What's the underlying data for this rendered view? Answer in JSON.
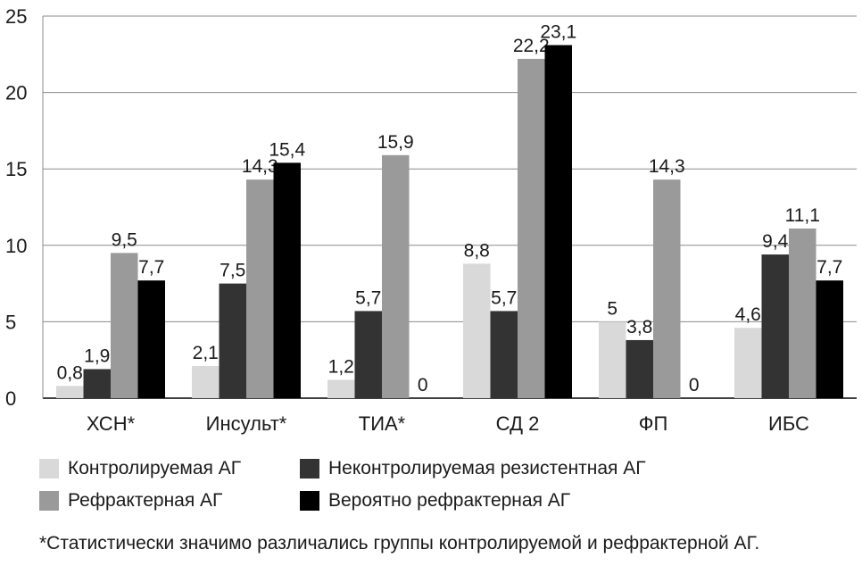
{
  "chart_data": {
    "type": "bar",
    "categories": [
      "ХСН*",
      "Инсульт*",
      "ТИА*",
      "СД 2",
      "ФП",
      "ИБС"
    ],
    "series": [
      {
        "name": "Контролируемая АГ",
        "color": "#d9d9d9",
        "values": [
          0.8,
          2.1,
          1.2,
          8.8,
          5,
          4.6
        ],
        "labels": [
          "0,8",
          "2,1",
          "1,2",
          "8,8",
          "5",
          "4,6"
        ]
      },
      {
        "name": "Неконтролируемая резистентная АГ",
        "color": "#333333",
        "values": [
          1.9,
          7.5,
          5.7,
          5.7,
          3.8,
          9.4
        ],
        "labels": [
          "1,9",
          "7,5",
          "5,7",
          "5,7",
          "3,8",
          "9,4"
        ]
      },
      {
        "name": "Рефрактерная АГ",
        "color": "#9a9a9a",
        "values": [
          9.5,
          14.3,
          15.9,
          22.2,
          14.3,
          11.1
        ],
        "labels": [
          "9,5",
          "14,3",
          "15,9",
          "22,2",
          "14,3",
          "11,1"
        ]
      },
      {
        "name": "Вероятно рефрактерная АГ",
        "color": "#000000",
        "values": [
          7.7,
          15.4,
          0,
          23.1,
          0,
          7.7
        ],
        "labels": [
          "7,7",
          "15,4",
          "0",
          "23,1",
          "0",
          "7,7"
        ]
      }
    ],
    "yticks": [
      "0",
      "5",
      "10",
      "15",
      "20",
      "25"
    ],
    "ylim": [
      0,
      25
    ],
    "grid": true,
    "legend_position": "bottom"
  },
  "footnote": "*Статистически значимо различались группы контролируемой и рефрактерной АГ."
}
